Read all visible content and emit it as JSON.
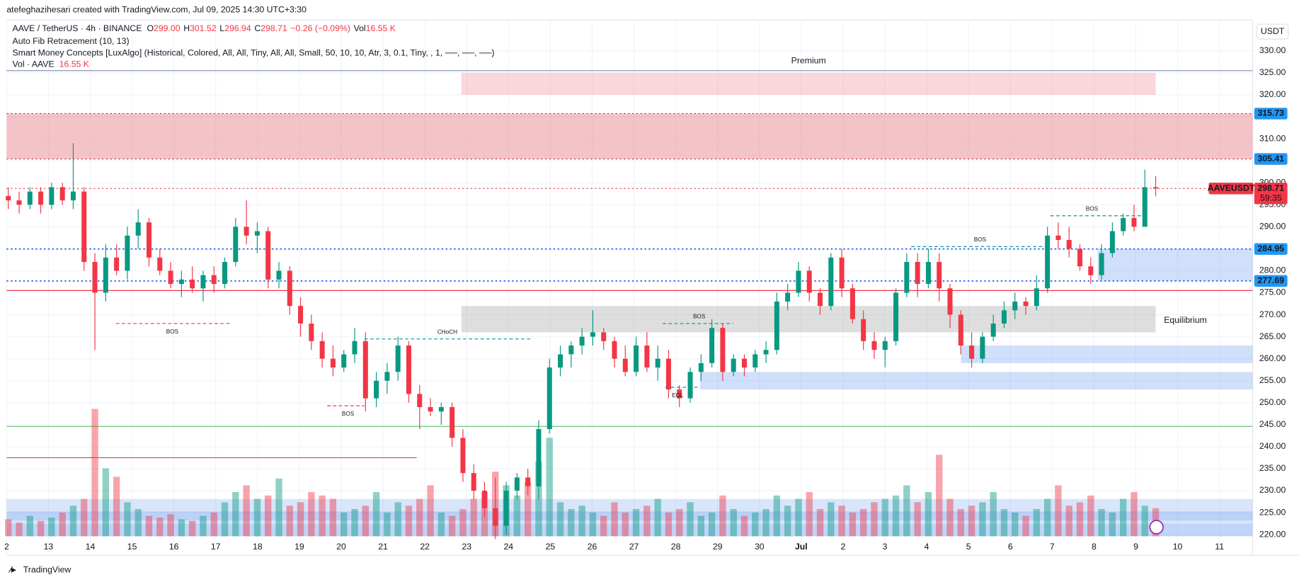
{
  "header": {
    "credit": "atefeghazihesari created with TradingView.com, Jul 09, 2025 14:30 UTC+3:30",
    "symbol": "AAVE / TetherUS · 4h · BINANCE",
    "ohlc": [
      {
        "key": "O",
        "value": 299,
        "label": "299.00"
      },
      {
        "key": "H",
        "value": 301.52,
        "label": "301.52"
      },
      {
        "key": "L",
        "value": 296.94,
        "label": "296.94"
      },
      {
        "key": "C",
        "value": 298.71,
        "label": "298.71"
      }
    ],
    "change": "−0.26 (−0.09%)",
    "vol_key": "Vol",
    "vol": "16.55 K",
    "indicators": [
      "Auto Fib Retracement (10, 13)",
      "Smart Money Concepts [LuxAlgo] (Historical, Colored, All, All, Tiny, All, All, Small, 50, 10, 10, Atr, 3, 0.1, Tiny, , 1, ──, ──, ──)"
    ],
    "vol_line": "Vol · AAVE",
    "vol_line_value": "16.55 K",
    "currency": "USDT",
    "brand": "TradingView"
  },
  "chart_data": {
    "type": "candlestick",
    "up_color": "#089981",
    "down_color": "#f23645",
    "xticks": [
      "2",
      "13",
      "14",
      "15",
      "16",
      "17",
      "18",
      "19",
      "20",
      "21",
      "22",
      "23",
      "24",
      "25",
      "26",
      "27",
      "28",
      "29",
      "30",
      "Jul",
      "2",
      "3",
      "4",
      "5",
      "6",
      "7",
      "8",
      "9",
      "10",
      "11"
    ],
    "ylim": [
      215.3,
      337
    ],
    "yticks": [
      {
        "value": 220,
        "label": "220.00"
      },
      {
        "value": 225,
        "label": "225.00"
      },
      {
        "value": 230,
        "label": "230.00"
      },
      {
        "value": 235,
        "label": "235.00"
      },
      {
        "value": 240,
        "label": "240.00"
      },
      {
        "value": 245,
        "label": "245.00"
      },
      {
        "value": 250,
        "label": "250.00"
      },
      {
        "value": 255,
        "label": "255.00"
      },
      {
        "value": 260,
        "label": "260.00"
      },
      {
        "value": 265,
        "label": "265.00"
      },
      {
        "value": 270,
        "label": "270.00"
      },
      {
        "value": 275,
        "label": "275.00"
      },
      {
        "value": 280,
        "label": "280.00"
      },
      {
        "value": 285,
        "label": "285.00"
      },
      {
        "value": 290,
        "label": "290.00"
      },
      {
        "value": 295,
        "label": "295.00"
      },
      {
        "value": 300,
        "label": "300.00"
      },
      {
        "value": 305,
        "label": "305.00"
      },
      {
        "value": 310,
        "label": "310.00"
      },
      {
        "value": 315,
        "label": "315.00"
      },
      {
        "value": 320,
        "label": "320.00"
      },
      {
        "value": 325,
        "label": "325.00"
      },
      {
        "value": 330,
        "label": "330.00"
      }
    ],
    "grid": true,
    "candles": [
      [
        297,
        299,
        294,
        296
      ],
      [
        296,
        298,
        293,
        295
      ],
      [
        295,
        299,
        294,
        298
      ],
      [
        298,
        299,
        293,
        295
      ],
      [
        295,
        300,
        294,
        299
      ],
      [
        299,
        300,
        295,
        296
      ],
      [
        296,
        309,
        294,
        298
      ],
      [
        298,
        299,
        280,
        282
      ],
      [
        282,
        284,
        262,
        275
      ],
      [
        275,
        286,
        273,
        283
      ],
      [
        283,
        286,
        279,
        280
      ],
      [
        280,
        290,
        278,
        288
      ],
      [
        288,
        294,
        285,
        291
      ],
      [
        291,
        292,
        281,
        283
      ],
      [
        283,
        285,
        279,
        280
      ],
      [
        280,
        282,
        276,
        277
      ],
      [
        277,
        280,
        274,
        278
      ],
      [
        278,
        281,
        275,
        276
      ],
      [
        276,
        280,
        273,
        279
      ],
      [
        279,
        281,
        275,
        277
      ],
      [
        277,
        283,
        276,
        282
      ],
      [
        282,
        292,
        281,
        290
      ],
      [
        290,
        296,
        286,
        288
      ],
      [
        288,
        291,
        284,
        289
      ],
      [
        289,
        290,
        276,
        278
      ],
      [
        278,
        282,
        276,
        280
      ],
      [
        280,
        281,
        270,
        272
      ],
      [
        272,
        274,
        265,
        268
      ],
      [
        268,
        270,
        262,
        264
      ],
      [
        264,
        266,
        258,
        260
      ],
      [
        260,
        263,
        256,
        258
      ],
      [
        258,
        262,
        257,
        261
      ],
      [
        261,
        267,
        259,
        264
      ],
      [
        264,
        266,
        248,
        251
      ],
      [
        251,
        257,
        249,
        255
      ],
      [
        255,
        259,
        252,
        257
      ],
      [
        257,
        265,
        255,
        263
      ],
      [
        263,
        264,
        250,
        252
      ],
      [
        252,
        254,
        244,
        249
      ],
      [
        249,
        251,
        247,
        248
      ],
      [
        248,
        250,
        245,
        249
      ],
      [
        249,
        250,
        240,
        242
      ],
      [
        242,
        244,
        232,
        234
      ],
      [
        234,
        236,
        228,
        230
      ],
      [
        230,
        232,
        224,
        226
      ],
      [
        226,
        233,
        219,
        222
      ],
      [
        222,
        232,
        220,
        230
      ],
      [
        230,
        234,
        228,
        233
      ],
      [
        233,
        235,
        229,
        231
      ],
      [
        231,
        246,
        228,
        244
      ],
      [
        244,
        260,
        243,
        258
      ],
      [
        258,
        263,
        256,
        261
      ],
      [
        261,
        264,
        258,
        263
      ],
      [
        263,
        267,
        261,
        265
      ],
      [
        265,
        271,
        263,
        266
      ],
      [
        266,
        267,
        262,
        264
      ],
      [
        264,
        265,
        258,
        260
      ],
      [
        260,
        263,
        256,
        257
      ],
      [
        257,
        265,
        256,
        263
      ],
      [
        263,
        266,
        257,
        258
      ],
      [
        258,
        263,
        255,
        260
      ],
      [
        260,
        262,
        251,
        253
      ],
      [
        253,
        254,
        249,
        251
      ],
      [
        251,
        258,
        250,
        257
      ],
      [
        257,
        261,
        255,
        259
      ],
      [
        259,
        269,
        258,
        267
      ],
      [
        267,
        268,
        255,
        257
      ],
      [
        257,
        261,
        256,
        260
      ],
      [
        260,
        261,
        256,
        258
      ],
      [
        258,
        262,
        257,
        261
      ],
      [
        261,
        264,
        259,
        262
      ],
      [
        262,
        275,
        261,
        273
      ],
      [
        273,
        277,
        271,
        275
      ],
      [
        275,
        282,
        274,
        280
      ],
      [
        280,
        281,
        273,
        275
      ],
      [
        275,
        276,
        270,
        272
      ],
      [
        272,
        284,
        271,
        283
      ],
      [
        283,
        285,
        274,
        276
      ],
      [
        276,
        277,
        268,
        269
      ],
      [
        269,
        271,
        262,
        264
      ],
      [
        264,
        266,
        260,
        262
      ],
      [
        262,
        265,
        258,
        264
      ],
      [
        264,
        276,
        263,
        275
      ],
      [
        275,
        284,
        274,
        282
      ],
      [
        282,
        284,
        274,
        277
      ],
      [
        277,
        285,
        276,
        282
      ],
      [
        282,
        284,
        273,
        276
      ],
      [
        276,
        277,
        267,
        270
      ],
      [
        270,
        271,
        261,
        263
      ],
      [
        263,
        266,
        258,
        260
      ],
      [
        260,
        266,
        259,
        265
      ],
      [
        265,
        270,
        264,
        268
      ],
      [
        268,
        273,
        267,
        271
      ],
      [
        271,
        275,
        269,
        273
      ],
      [
        273,
        274,
        270,
        272
      ],
      [
        272,
        279,
        271,
        276
      ],
      [
        276,
        290,
        275,
        288
      ],
      [
        288,
        291,
        285,
        287
      ],
      [
        287,
        290,
        283,
        285
      ],
      [
        285,
        286,
        280,
        281
      ],
      [
        281,
        283,
        277,
        279
      ],
      [
        279,
        286,
        278,
        284
      ],
      [
        284,
        291,
        283,
        289
      ],
      [
        289,
        293,
        288,
        292
      ],
      [
        292,
        295,
        289,
        290
      ],
      [
        290,
        303,
        290,
        299
      ],
      [
        299,
        301.52,
        296.94,
        298.71
      ]
    ],
    "volumes": [
      10,
      8,
      12,
      9,
      11,
      14,
      18,
      22,
      75,
      40,
      35,
      20,
      16,
      12,
      11,
      13,
      10,
      9,
      12,
      14,
      20,
      26,
      30,
      22,
      24,
      34,
      18,
      20,
      26,
      24,
      22,
      14,
      16,
      18,
      26,
      14,
      20,
      18,
      22,
      30,
      14,
      12,
      16,
      22,
      26,
      38,
      30,
      24,
      32,
      44,
      58,
      20,
      16,
      18,
      14,
      12,
      20,
      14,
      16,
      18,
      22,
      14,
      16,
      20,
      12,
      14,
      24,
      16,
      12,
      14,
      16,
      24,
      18,
      22,
      26,
      16,
      20,
      18,
      14,
      16,
      20,
      22,
      24,
      30,
      20,
      26,
      48,
      22,
      16,
      18,
      20,
      26,
      16,
      14,
      12,
      16,
      22,
      30,
      18,
      20,
      24,
      16,
      14,
      22,
      26,
      18,
      16.55
    ],
    "zones": [
      {
        "from": 305.41,
        "to": 315.73,
        "color": "rgba(231,123,133,0.45)",
        "span": "full"
      },
      {
        "from": 320,
        "to": 325,
        "color": "rgba(247,165,172,0.45)",
        "span": "premium",
        "label": "Premium"
      },
      {
        "from": 266,
        "to": 272,
        "color": "rgba(160,160,160,0.35)",
        "span": "eq",
        "label": "Equilibrium"
      },
      {
        "from": 277.69,
        "to": 284.95,
        "color": "rgba(100,150,240,0.3)",
        "span": "d1"
      },
      {
        "from": 259,
        "to": 263,
        "color": "rgba(100,150,240,0.3)",
        "span": "d2"
      },
      {
        "from": 253,
        "to": 257,
        "color": "rgba(100,150,240,0.3)",
        "span": "d3"
      }
    ],
    "levels": [
      {
        "value": 325.5,
        "color": "#8a96b6",
        "style": "solid",
        "span": "full"
      },
      {
        "value": 305.41,
        "color": "#c0304a",
        "style": "dotted",
        "span": "full"
      },
      {
        "value": 315.73,
        "color": "#c0304a",
        "style": "dotted",
        "span": "full"
      },
      {
        "value": 284.95,
        "color": "#2962ff",
        "style": "dotted",
        "span": "full"
      },
      {
        "value": 277.69,
        "color": "#2962ff",
        "style": "dotted",
        "span": "full"
      },
      {
        "value": 275.5,
        "color": "#f23645",
        "style": "solid",
        "span": "full"
      },
      {
        "value": 244.6,
        "color": "#66bb6a",
        "style": "solid",
        "span": "full"
      },
      {
        "value": 237.5,
        "color": "#f23645",
        "style": "solid",
        "span": "left"
      },
      {
        "value": 298.71,
        "color": "#f23645",
        "style": "dotted",
        "span": "full"
      }
    ],
    "price_tags": [
      {
        "value": 315.73,
        "label": "315.73",
        "color": "#2196f3"
      },
      {
        "value": 305.41,
        "label": "305.41",
        "color": "#2196f3"
      },
      {
        "value": 284.95,
        "label": "284.95",
        "color": "#2196f3"
      },
      {
        "value": 277.69,
        "label": "277.69",
        "color": "#2196f3"
      }
    ],
    "last": {
      "symbol": "AAVEUSDT",
      "value": 298.71,
      "label": "298.71",
      "countdown": "59:35",
      "color": "#f23645"
    },
    "structures": [
      {
        "text": "BOS",
        "value": 268,
        "color": "#f23645"
      },
      {
        "text": "BOS",
        "value": 249.3,
        "color": "#f23645"
      },
      {
        "text": "CHoCH",
        "value": 264.5,
        "color": "#089981"
      },
      {
        "text": "BOS",
        "value": 268,
        "color": "#089981"
      },
      {
        "text": "BOS",
        "value": 285.5,
        "color": "#089981"
      },
      {
        "text": "BOS",
        "value": 292.5,
        "color": "#089981"
      },
      {
        "text": "EQL",
        "value": 253.5,
        "color": "#089981"
      }
    ]
  }
}
